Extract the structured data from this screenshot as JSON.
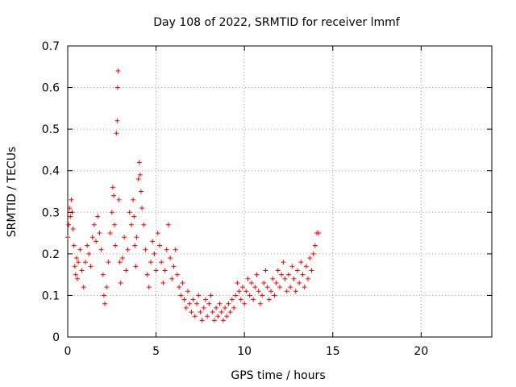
{
  "chart_data": {
    "type": "scatter",
    "title": "Day 108 of 2022, SRMTID for receiver lmmf",
    "xlabel": "GPS time / hours",
    "ylabel": "SRMTID / TECUs",
    "xlim": [
      0,
      24
    ],
    "ylim": [
      0,
      0.7
    ],
    "xticks": [
      0,
      5,
      10,
      15,
      20
    ],
    "yticks": [
      0,
      0.1,
      0.2,
      0.3,
      0.4,
      0.5,
      0.6,
      0.7
    ],
    "grid": true,
    "marker": "+",
    "series": [
      {
        "name": "SRMTID",
        "color": "#ff0000",
        "points": [
          [
            0.0,
            0.24
          ],
          [
            0.05,
            0.27
          ],
          [
            0.1,
            0.31
          ],
          [
            0.15,
            0.29
          ],
          [
            0.2,
            0.33
          ],
          [
            0.25,
            0.3
          ],
          [
            0.3,
            0.26
          ],
          [
            0.35,
            0.22
          ],
          [
            0.4,
            0.17
          ],
          [
            0.45,
            0.15
          ],
          [
            0.5,
            0.19
          ],
          [
            0.55,
            0.14
          ],
          [
            0.6,
            0.18
          ],
          [
            0.7,
            0.21
          ],
          [
            0.8,
            0.16
          ],
          [
            0.9,
            0.12
          ],
          [
            1.0,
            0.18
          ],
          [
            1.1,
            0.22
          ],
          [
            1.2,
            0.2
          ],
          [
            1.3,
            0.17
          ],
          [
            1.4,
            0.24
          ],
          [
            1.5,
            0.27
          ],
          [
            1.6,
            0.23
          ],
          [
            1.7,
            0.29
          ],
          [
            1.8,
            0.25
          ],
          [
            1.9,
            0.21
          ],
          [
            2.0,
            0.15
          ],
          [
            2.05,
            0.1
          ],
          [
            2.1,
            0.08
          ],
          [
            2.2,
            0.12
          ],
          [
            2.3,
            0.18
          ],
          [
            2.4,
            0.25
          ],
          [
            2.5,
            0.3
          ],
          [
            2.55,
            0.36
          ],
          [
            2.6,
            0.34
          ],
          [
            2.65,
            0.27
          ],
          [
            2.7,
            0.22
          ],
          [
            2.75,
            0.49
          ],
          [
            2.8,
            0.52
          ],
          [
            2.82,
            0.6
          ],
          [
            2.85,
            0.64
          ],
          [
            2.9,
            0.33
          ],
          [
            2.95,
            0.18
          ],
          [
            3.0,
            0.13
          ],
          [
            3.1,
            0.19
          ],
          [
            3.2,
            0.24
          ],
          [
            3.3,
            0.16
          ],
          [
            3.4,
            0.21
          ],
          [
            3.5,
            0.3
          ],
          [
            3.6,
            0.27
          ],
          [
            3.7,
            0.33
          ],
          [
            3.75,
            0.29
          ],
          [
            3.8,
            0.22
          ],
          [
            3.85,
            0.17
          ],
          [
            3.9,
            0.24
          ],
          [
            4.0,
            0.38
          ],
          [
            4.05,
            0.42
          ],
          [
            4.1,
            0.39
          ],
          [
            4.15,
            0.35
          ],
          [
            4.2,
            0.31
          ],
          [
            4.3,
            0.27
          ],
          [
            4.4,
            0.21
          ],
          [
            4.5,
            0.15
          ],
          [
            4.6,
            0.12
          ],
          [
            4.7,
            0.18
          ],
          [
            4.8,
            0.23
          ],
          [
            4.9,
            0.2
          ],
          [
            5.0,
            0.16
          ],
          [
            5.1,
            0.25
          ],
          [
            5.2,
            0.22
          ],
          [
            5.3,
            0.18
          ],
          [
            5.4,
            0.13
          ],
          [
            5.5,
            0.16
          ],
          [
            5.6,
            0.21
          ],
          [
            5.7,
            0.27
          ],
          [
            5.8,
            0.19
          ],
          [
            5.9,
            0.14
          ],
          [
            6.0,
            0.17
          ],
          [
            6.1,
            0.21
          ],
          [
            6.2,
            0.15
          ],
          [
            6.3,
            0.12
          ],
          [
            6.4,
            0.1
          ],
          [
            6.5,
            0.13
          ],
          [
            6.6,
            0.09
          ],
          [
            6.7,
            0.07
          ],
          [
            6.8,
            0.11
          ],
          [
            6.9,
            0.08
          ],
          [
            7.0,
            0.06
          ],
          [
            7.1,
            0.09
          ],
          [
            7.2,
            0.05
          ],
          [
            7.3,
            0.08
          ],
          [
            7.4,
            0.1
          ],
          [
            7.5,
            0.06
          ],
          [
            7.6,
            0.04
          ],
          [
            7.7,
            0.07
          ],
          [
            7.8,
            0.09
          ],
          [
            7.9,
            0.05
          ],
          [
            8.0,
            0.08
          ],
          [
            8.1,
            0.1
          ],
          [
            8.2,
            0.06
          ],
          [
            8.3,
            0.04
          ],
          [
            8.4,
            0.07
          ],
          [
            8.5,
            0.05
          ],
          [
            8.6,
            0.08
          ],
          [
            8.7,
            0.06
          ],
          [
            8.8,
            0.04
          ],
          [
            8.9,
            0.07
          ],
          [
            9.0,
            0.05
          ],
          [
            9.1,
            0.08
          ],
          [
            9.2,
            0.06
          ],
          [
            9.3,
            0.09
          ],
          [
            9.4,
            0.07
          ],
          [
            9.5,
            0.1
          ],
          [
            9.6,
            0.13
          ],
          [
            9.7,
            0.11
          ],
          [
            9.8,
            0.09
          ],
          [
            9.9,
            0.12
          ],
          [
            10.0,
            0.08
          ],
          [
            10.1,
            0.11
          ],
          [
            10.2,
            0.14
          ],
          [
            10.3,
            0.1
          ],
          [
            10.4,
            0.13
          ],
          [
            10.5,
            0.09
          ],
          [
            10.6,
            0.12
          ],
          [
            10.7,
            0.15
          ],
          [
            10.8,
            0.11
          ],
          [
            10.9,
            0.08
          ],
          [
            11.0,
            0.1
          ],
          [
            11.1,
            0.13
          ],
          [
            11.2,
            0.16
          ],
          [
            11.3,
            0.12
          ],
          [
            11.4,
            0.09
          ],
          [
            11.5,
            0.11
          ],
          [
            11.6,
            0.14
          ],
          [
            11.7,
            0.1
          ],
          [
            11.8,
            0.13
          ],
          [
            11.9,
            0.16
          ],
          [
            12.0,
            0.12
          ],
          [
            12.1,
            0.15
          ],
          [
            12.2,
            0.18
          ],
          [
            12.3,
            0.14
          ],
          [
            12.4,
            0.11
          ],
          [
            12.5,
            0.15
          ],
          [
            12.6,
            0.12
          ],
          [
            12.7,
            0.17
          ],
          [
            12.8,
            0.14
          ],
          [
            12.9,
            0.11
          ],
          [
            13.0,
            0.16
          ],
          [
            13.1,
            0.13
          ],
          [
            13.2,
            0.18
          ],
          [
            13.3,
            0.15
          ],
          [
            13.4,
            0.12
          ],
          [
            13.5,
            0.17
          ],
          [
            13.6,
            0.14
          ],
          [
            13.7,
            0.19
          ],
          [
            13.8,
            0.16
          ],
          [
            13.9,
            0.2
          ],
          [
            14.0,
            0.22
          ],
          [
            14.1,
            0.25
          ],
          [
            14.2,
            0.25
          ]
        ]
      }
    ]
  }
}
